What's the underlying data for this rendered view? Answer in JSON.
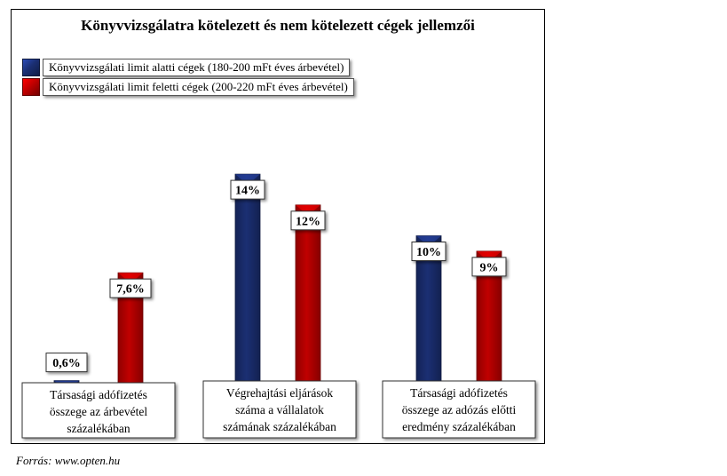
{
  "colors": {
    "blue": "#1b2f73",
    "red": "#c00000"
  },
  "source": "Forrás: www.opten.hu",
  "chart_data": {
    "type": "bar",
    "title": "Könyvvizsgálatra kötelezett és nem kötelezett cégek jellemzői",
    "categories": [
      "Társasági adófizetés összege az árbevétel százalékában",
      "Végrehajtási eljárások száma a vállalatok számának százalékában",
      "Társasági adófizetés összege az adózás előtti eredmény százalékában"
    ],
    "series": [
      {
        "name": "Könyvvizsgálati limit alatti cégek (180-200 mFt éves árbevétel)",
        "color": "#1b2f73",
        "values": [
          0.6,
          14,
          10
        ],
        "labels": [
          "0,6%",
          "14%",
          "10%"
        ]
      },
      {
        "name": "Könyvvizsgálati limit feletti cégek (200-220 mFt éves árbevétel)",
        "color": "#c00000",
        "values": [
          7.6,
          12,
          9
        ],
        "labels": [
          "7,6%",
          "12%",
          "9%"
        ]
      }
    ],
    "grid": false,
    "legend": "top-left"
  }
}
